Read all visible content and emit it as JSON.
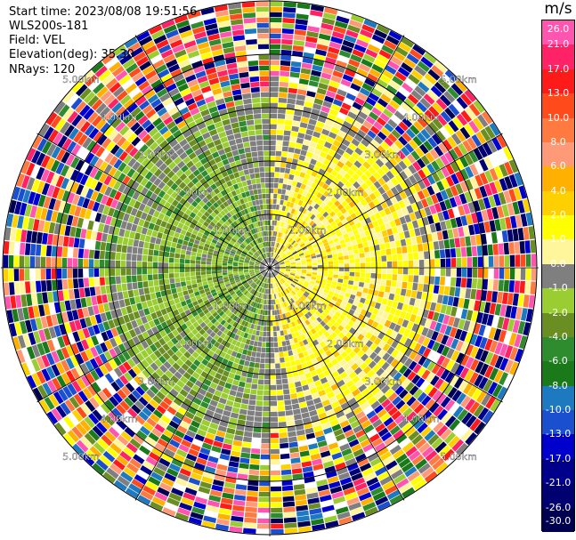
{
  "info": {
    "start_time": "Start time: 2023/08/08 19:51:56",
    "instrument": "WLS200s-181",
    "field": "Field: VEL",
    "elevation": "Elevation(deg): 35.30",
    "nrays": "NRays: 120"
  },
  "colorbar": {
    "unit": "m/s",
    "ticks": [
      "26.0",
      "21.0",
      "17.0",
      "13.0",
      "10.0",
      "8.0",
      "6.0",
      "4.0",
      "2.0",
      "1.0",
      "0.0",
      "-1.0",
      "-2.0",
      "-4.0",
      "-6.0",
      "-8.0",
      "-10.0",
      "-13.0",
      "-17.0",
      "-21.0",
      "-26.0",
      "-30.0"
    ],
    "colors": [
      "#ff55b0",
      "#ff2266",
      "#ff1a1a",
      "#ff4a1c",
      "#ff7a40",
      "#ff9a78",
      "#ffb000",
      "#ffd000",
      "#ffff00",
      "#fff59a",
      "#7f7f7f",
      "#9acd32",
      "#6b8e23",
      "#2e8b2e",
      "#1a7a1a",
      "#1e7ac0",
      "#1a4fd0",
      "#0000cd",
      "#00008b",
      "#000070",
      "#000050"
    ]
  },
  "chart_data": {
    "type": "heatmap",
    "projection": "polar PPI",
    "field": "VEL",
    "units": "m/s",
    "nrays": 120,
    "range_rings": [
      "1.00km",
      "2.00km",
      "3.00km",
      "4.00km",
      "5.00km"
    ],
    "ring_label_positions": [
      "upper-left",
      "upper-right",
      "lower-left",
      "lower-right"
    ],
    "value_range": [
      -30.0,
      26.0
    ],
    "pattern": {
      "west_sector": "green (-1 to -6 m/s) out to ~3 km",
      "east_sector": "yellow (1 to 4 m/s) out to ~3 km",
      "transition_zone": "grey (~0 m/s) along north-south axis",
      "outer_ranges": "noisy multi-color beyond ~3 km"
    }
  }
}
